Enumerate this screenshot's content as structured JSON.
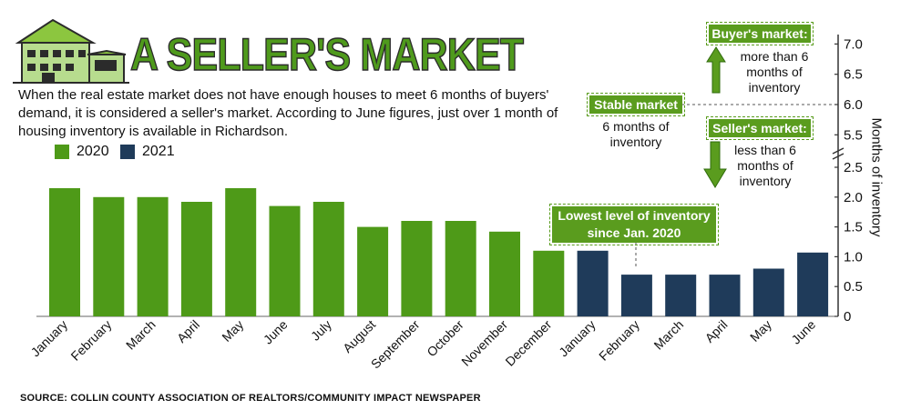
{
  "header": {
    "title": "A SELLER'S MARKET",
    "description": "When the real estate market does not have enough houses to meet 6 months of buyers' demand, it is considered a seller's market. According to June figures, just over 1 month of housing inventory is available in Richardson.",
    "source": "SOURCE: COLLIN COUNTY ASSOCIATION OF REALTORS/COMMUNITY IMPACT NEWSPAPER"
  },
  "legend": [
    {
      "label": "2020",
      "color": "#4e9a18"
    },
    {
      "label": "2021",
      "color": "#1f3b5a"
    }
  ],
  "key": {
    "buyers": {
      "label": "Buyer's market:",
      "text": "more than 6 months of inventory"
    },
    "stable": {
      "label": "Stable market",
      "text": "6 months of inventory"
    },
    "sellers": {
      "label": "Seller's market:",
      "text": "less than 6 months of inventory"
    }
  },
  "annotation": {
    "text": "Lowest level of inventory since Jan. 2020"
  },
  "chart_data": {
    "type": "bar",
    "categories": [
      "January",
      "February",
      "March",
      "April",
      "May",
      "June",
      "July",
      "August",
      "September",
      "October",
      "November",
      "December",
      "January",
      "February",
      "March",
      "April",
      "May",
      "June"
    ],
    "series": [
      {
        "name": "2020",
        "color": "#4e9a18",
        "values": [
          2.15,
          2.0,
          2.0,
          1.92,
          2.15,
          1.85,
          1.92,
          1.5,
          1.6,
          1.6,
          1.42,
          1.1,
          null,
          null,
          null,
          null,
          null,
          null
        ]
      },
      {
        "name": "2021",
        "color": "#1f3b5a",
        "values": [
          null,
          null,
          null,
          null,
          null,
          null,
          null,
          null,
          null,
          null,
          null,
          null,
          1.1,
          0.7,
          0.7,
          0.7,
          0.8,
          1.07
        ]
      }
    ],
    "ylabel": "Months of inventory",
    "yticks": [
      "0",
      "0.5",
      "1.0",
      "1.5",
      "2.0",
      "2.5",
      "5.5",
      "6.0",
      "6.5",
      "7.0"
    ],
    "ylim": [
      0,
      7.0
    ],
    "axis_break": [
      2.5,
      5.5
    ],
    "reference_line": 6.0,
    "annotated_category_index": 13,
    "grid": false
  }
}
